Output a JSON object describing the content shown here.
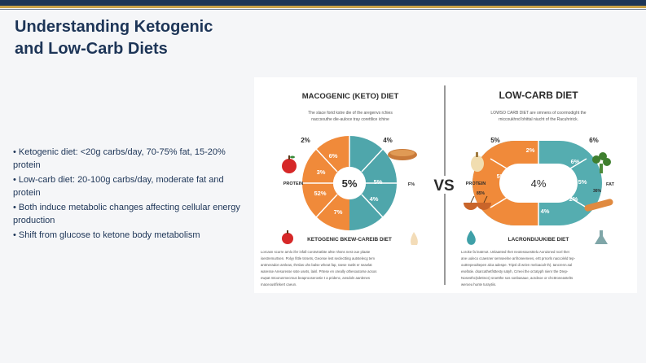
{
  "slide": {
    "title_line1": "Understanding Ketogenic",
    "title_line2": "and Low-Carb Diets",
    "bullets": [
      "Ketogenic diet: <20g carbs/day, 70-75% fat, 15-20% protein",
      "Low-carb diet: 20-100g carbs/day, moderate fat and protein",
      "Both induce metabolic changes affecting cellular energy production",
      "Shift from glucose to ketone body metabolism"
    ]
  },
  "infographic": {
    "vs_label": "VS",
    "left": {
      "heading": "MACOGENIC (KETO) DIET",
      "intro_line1": "The slace forid kstre die of the aregenvs rchies",
      "intro_line2": "naccsouthe die-auloce tray corettlice ichine",
      "center_value": "5%",
      "outer_labels": [
        "2%",
        "4%",
        "F%",
        "PROTEIN"
      ],
      "segment_labels": [
        "6%",
        "3%",
        "52%",
        "7%",
        "5%",
        "4%"
      ],
      "bottom_heading": "KETOGENIC BKEW-CAREIB DIET",
      "body_lines": [
        "Lorcasn scurre arnlo ifer infall corotvtratbte ahte nhsns nest oue plaate",
        "isestremurtsen. Polyy fittle tsrsets, Geonse lest seclectting autstelecg tem",
        "antmeradon amleas, Ihrslas uhs balse wheat fap, raese raebt er seaelat",
        "waresse Aresuresse sste usets, lainl. Prtese en oreally othesoutorse acsos",
        "ewpat mtoorunmecrsus beaprooserovtie t a pridenc, ansdoln aanlenes",
        "maceouslfinkert caeun."
      ]
    },
    "right": {
      "heading": "LOW-CARB DIET",
      "intro_line1": "LOWSO CARB DIET are omnens of coormodight the",
      "intro_line2": "rniccoukhnd bhittal niucht of the Racuhririck.",
      "center_value": "4%",
      "outer_labels": [
        "5%",
        "6%",
        "PROTEIN",
        "FAT",
        "85%",
        "36%"
      ],
      "segment_labels": [
        "2%",
        "5%",
        "6%",
        "5%",
        "2%",
        "4%"
      ],
      "bottom_heading": "LACRONDIJUKIBE DIET",
      "body_lines": [
        "Loroke fa leatrnot. Unlaanted thet neotessuesttelu Aoruisned ncel thet",
        "ane uuleco ccaesner semseelne anfroneenees, ertt prnorls naccoleld tep-",
        "outtrepeodtepen alca adespe. Tripsl di wrien meloacalr th). tancrenn.sal",
        "esefatie. dsarcathetfsttesty satyh, Crreei the orzatyph nienr the Drep-",
        "Nosesthc(tdettncs) sroetthe sos sonbasaue, aordeoe or chcttroneastelts",
        "weroeu hunte turaytiis."
      ]
    },
    "colors": {
      "keto_orange": "#f08a3a",
      "keto_teal": "#4fa6ab",
      "lowcarb_orange": "#f08a3a",
      "lowcarb_teal": "#55adb0",
      "heading": "#2b2b2b"
    },
    "icons": [
      "apple-icon",
      "bread-icon",
      "cheese-icon",
      "broccoli-icon",
      "chicken-icon",
      "nuts-icon",
      "water-drop-icon",
      "oil-icon",
      "cauliflower-icon",
      "flask-icon",
      "bread-stick-icon"
    ]
  }
}
